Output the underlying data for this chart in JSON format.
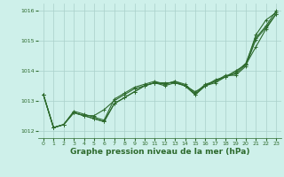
{
  "xlabel": "Graphe pression niveau de la mer (hPa)",
  "x": [
    0,
    1,
    2,
    3,
    4,
    5,
    6,
    7,
    8,
    9,
    10,
    11,
    12,
    13,
    14,
    15,
    16,
    17,
    18,
    19,
    20,
    21,
    22,
    23
  ],
  "series": [
    [
      1013.2,
      1012.1,
      1012.2,
      1012.6,
      1012.5,
      1012.4,
      1012.3,
      1012.9,
      1013.1,
      1013.3,
      1013.5,
      1013.6,
      1013.5,
      1013.6,
      1013.5,
      1013.2,
      1013.5,
      1013.6,
      1013.8,
      1013.9,
      1014.2,
      1014.8,
      1015.4,
      1015.9
    ],
    [
      1013.2,
      1012.1,
      1012.2,
      1012.6,
      1012.5,
      1012.5,
      1012.7,
      1013.0,
      1013.2,
      1013.4,
      1013.5,
      1013.6,
      1013.6,
      1013.6,
      1013.5,
      1013.3,
      1013.5,
      1013.7,
      1013.8,
      1014.0,
      1014.2,
      1015.2,
      1015.7,
      1015.95
    ],
    [
      1013.2,
      1012.1,
      1012.2,
      1012.65,
      1012.55,
      1012.45,
      1012.35,
      1013.05,
      1013.25,
      1013.45,
      1013.55,
      1013.65,
      1013.55,
      1013.65,
      1013.55,
      1013.25,
      1013.55,
      1013.65,
      1013.85,
      1013.85,
      1014.15,
      1015.05,
      1015.45,
      1015.9
    ],
    [
      1013.2,
      1012.1,
      1012.2,
      1012.6,
      1012.5,
      1012.4,
      1012.3,
      1012.9,
      1013.1,
      1013.3,
      1013.5,
      1013.6,
      1013.55,
      1013.65,
      1013.5,
      1013.2,
      1013.5,
      1013.65,
      1013.8,
      1013.95,
      1014.25,
      1015.1,
      1015.5,
      1016.0
    ]
  ],
  "line_color": "#2d6a2d",
  "marker": "+",
  "markersize": 3,
  "linewidth": 0.8,
  "bg_color": "#cef0ea",
  "grid_color": "#aacfca",
  "text_color": "#2d6a2d",
  "ylim": [
    1011.75,
    1016.25
  ],
  "yticks": [
    1012,
    1013,
    1014,
    1015,
    1016
  ],
  "xticks": [
    0,
    1,
    2,
    3,
    4,
    5,
    6,
    7,
    8,
    9,
    10,
    11,
    12,
    13,
    14,
    15,
    16,
    17,
    18,
    19,
    20,
    21,
    22,
    23
  ],
  "tick_fontsize": 4.5,
  "label_fontsize": 6.5,
  "label_fontweight": "bold"
}
